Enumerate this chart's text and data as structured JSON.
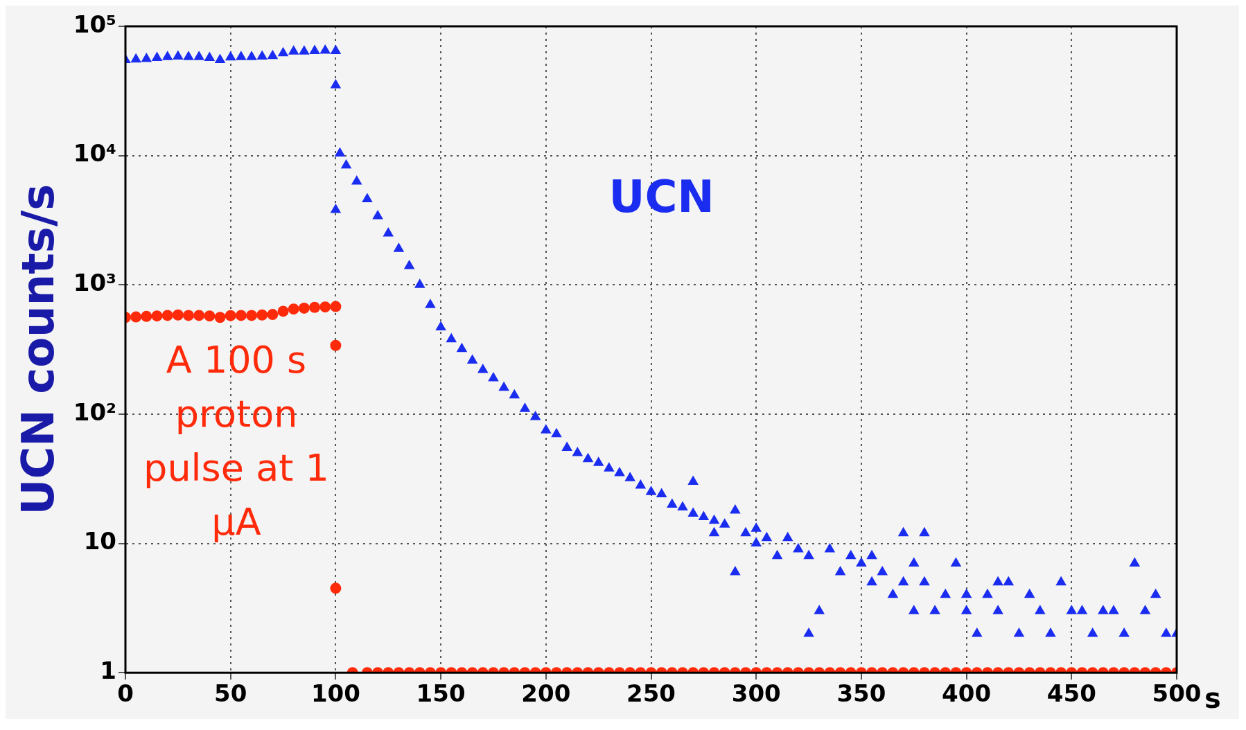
{
  "chart_data": {
    "type": "scatter",
    "xlabel": "s",
    "ylabel": "UCN counts/s",
    "log": "y",
    "grid": true,
    "xlim": [
      0,
      500
    ],
    "xticks": [
      0,
      50,
      100,
      150,
      200,
      250,
      300,
      350,
      400,
      450,
      500
    ],
    "ylim": [
      1,
      100000
    ],
    "yticks": [
      1,
      10,
      {
        "value": 100,
        "label": "10²"
      },
      {
        "value": 1000,
        "label": "10³"
      },
      {
        "value": 10000,
        "label": "10⁴"
      },
      {
        "value": 100000,
        "label": "10⁵"
      }
    ],
    "annotations": [
      "A 100 s proton pulse at 1 µA"
    ],
    "series": [
      {
        "name": "UCN",
        "color": "#1a2cf0",
        "marker": "triangle",
        "x": [
          0,
          5,
          10,
          15,
          20,
          25,
          30,
          35,
          40,
          45,
          50,
          55,
          60,
          65,
          70,
          75,
          80,
          85,
          90,
          95,
          100,
          100,
          100,
          102,
          105,
          110,
          115,
          120,
          125,
          130,
          135,
          140,
          145,
          150,
          155,
          160,
          165,
          170,
          175,
          180,
          185,
          190,
          195,
          200,
          205,
          210,
          215,
          220,
          225,
          230,
          235,
          240,
          245,
          250,
          255,
          260,
          265,
          270,
          270,
          275,
          280,
          280,
          285,
          290,
          290,
          295,
          300,
          300,
          305,
          310,
          315,
          320,
          325,
          325,
          330,
          335,
          340,
          345,
          350,
          355,
          355,
          360,
          365,
          370,
          370,
          375,
          375,
          380,
          380,
          385,
          390,
          395,
          400,
          400,
          405,
          410,
          415,
          415,
          420,
          425,
          430,
          435,
          440,
          445,
          450,
          455,
          460,
          465,
          470,
          475,
          480,
          485,
          490,
          495,
          500
        ],
        "values": [
          55000,
          55500,
          56000,
          57000,
          58000,
          58500,
          58000,
          58000,
          57000,
          55000,
          57500,
          58000,
          58000,
          58500,
          59000,
          62000,
          64000,
          64000,
          64500,
          65000,
          64500,
          35000,
          3800,
          10400,
          8400,
          6300,
          4600,
          3400,
          2500,
          1900,
          1400,
          1000,
          700,
          470,
          380,
          320,
          260,
          220,
          190,
          160,
          140,
          110,
          95,
          75,
          70,
          55,
          50,
          45,
          42,
          38,
          35,
          32,
          28,
          25,
          24,
          20,
          19,
          30,
          17,
          16,
          12,
          15,
          14,
          18,
          6,
          12,
          13,
          10,
          11,
          8,
          11,
          9,
          2,
          8,
          3,
          9,
          6,
          8,
          7,
          8,
          5,
          6,
          4,
          5,
          12,
          7,
          3,
          5,
          12,
          3,
          4,
          7,
          4,
          3,
          2,
          4,
          5,
          3,
          5,
          2,
          4,
          3,
          2,
          5,
          3,
          3,
          2,
          3,
          3,
          2,
          7,
          3,
          4,
          2,
          2
        ]
      },
      {
        "color": "#ff2a0a",
        "marker": "circle",
        "x": [
          0,
          5,
          10,
          15,
          20,
          25,
          30,
          35,
          40,
          45,
          50,
          55,
          60,
          65,
          70,
          75,
          80,
          85,
          90,
          95,
          100,
          100,
          100,
          108,
          115,
          120,
          125,
          130,
          135,
          140,
          145,
          150,
          155,
          160,
          165,
          170,
          175,
          180,
          185,
          190,
          195,
          200,
          205,
          210,
          215,
          220,
          225,
          230,
          235,
          240,
          245,
          250,
          255,
          260,
          265,
          270,
          275,
          280,
          285,
          290,
          295,
          300,
          305,
          310,
          315,
          320,
          325,
          330,
          335,
          340,
          345,
          350,
          355,
          360,
          365,
          370,
          375,
          380,
          385,
          390,
          395,
          400,
          405,
          410,
          415,
          420,
          425,
          430,
          435,
          440,
          445,
          450,
          455,
          460,
          465,
          470,
          475,
          480,
          485,
          490,
          495,
          500
        ],
        "values": [
          560,
          565,
          570,
          575,
          580,
          585,
          580,
          580,
          575,
          560,
          578,
          580,
          580,
          585,
          590,
          625,
          650,
          660,
          670,
          675,
          680,
          340,
          4.5,
          1,
          1,
          1,
          1,
          1,
          1,
          1,
          1,
          1,
          1,
          1,
          1,
          1,
          1,
          1,
          1,
          1,
          1,
          1,
          1,
          1,
          1,
          1,
          1,
          1,
          1,
          1,
          1,
          1,
          1,
          1,
          1,
          1,
          1,
          1,
          1,
          1,
          1,
          1,
          1,
          1,
          1,
          1,
          1,
          1,
          1,
          1,
          1,
          1,
          1,
          1,
          1,
          1,
          1,
          1,
          1,
          1,
          1,
          1,
          1,
          1,
          1,
          1,
          1,
          1,
          1,
          1,
          1,
          1,
          1,
          1,
          1,
          1,
          1,
          1,
          1,
          1,
          1,
          1
        ]
      }
    ]
  }
}
